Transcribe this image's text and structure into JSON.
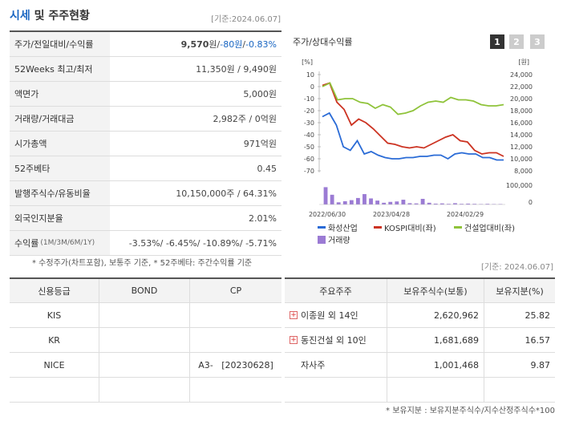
{
  "header": {
    "title_blue": "시세",
    "title_rest": " 및 주주현황",
    "date": "[기준:2024.06.07]"
  },
  "quote_rows": [
    {
      "label": "주가/전일대비/수익률",
      "price": "9,570",
      "unit": "원",
      "sep": " / ",
      "change": "-80원",
      "rate": "-0.83%"
    },
    {
      "label": "52Weeks 최고/최저",
      "value": "11,350원 / 9,490원"
    },
    {
      "label": "액면가",
      "value": "5,000원"
    },
    {
      "label": "거래량/거래대금",
      "value": "2,982주 / 0억원"
    },
    {
      "label": "시가총액",
      "value": "971억원"
    },
    {
      "label": "52주베타",
      "value": "0.45"
    },
    {
      "label": "발행주식수/유동비율",
      "value": "10,150,000주 / 64.31%"
    },
    {
      "label": "외국인지분율",
      "value": "2.01%"
    },
    {
      "label": "수익률",
      "label_small": "(1M/3M/6M/1Y)",
      "value": "-3.53%/ -6.45%/ -10.89%/ -5.71%"
    }
  ],
  "note_left": "* 수정주가(차트포함), 보통주 기준, * 52주베타: 주간수익률 기준",
  "chart_panel": {
    "title": "주가/상대수익률",
    "pages": [
      "1",
      "2",
      "3"
    ]
  },
  "chart_data": {
    "type": "line",
    "x_ticks": [
      "2022/06/30",
      "2023/04/28",
      "2024/02/29"
    ],
    "left_axis_unit": "[%]",
    "left_ticks": [
      "10",
      "0",
      "-10",
      "-20",
      "-30",
      "-40",
      "-50",
      "-60",
      "-70"
    ],
    "right_axis_unit": "[원]",
    "right_ticks": [
      "24,000",
      "22,000",
      "20,000",
      "18,000",
      "16,000",
      "14,000",
      "12,000",
      "10,000",
      "8,000"
    ],
    "volume_ticks": [
      "100,000",
      "0"
    ],
    "ylim_left": [
      -70,
      10
    ],
    "series": [
      {
        "name": "화성산업",
        "color": "#2a6bd6",
        "values": [
          -25,
          -22,
          -32,
          -50,
          -53,
          -45,
          -56,
          -54,
          -57,
          -59,
          -60,
          -60,
          -59,
          -59,
          -58,
          -58,
          -57,
          -57,
          -60,
          -56,
          -55,
          -56,
          -56,
          -59,
          -59,
          -61,
          -61
        ]
      },
      {
        "name": "KOSPI대비(좌)",
        "color": "#cc3322",
        "values": [
          1,
          3,
          -13,
          -19,
          -32,
          -27,
          -30,
          -35,
          -41,
          -47,
          -48,
          -50,
          -51,
          -50,
          -51,
          -48,
          -45,
          -42,
          -40,
          -45,
          -46,
          -53,
          -56,
          -55,
          -55,
          -58
        ]
      },
      {
        "name": "건설업대비(좌)",
        "color": "#8fc33a",
        "values": [
          0,
          3,
          -11,
          -10,
          -10,
          -13,
          -14,
          -18,
          -15,
          -17,
          -23,
          -22,
          -20,
          -16,
          -13,
          -12,
          -13,
          -9,
          -11,
          -11,
          -12,
          -15,
          -16,
          -16,
          -15
        ]
      }
    ],
    "volume_name": "거래량",
    "volume_color": "#9b7bd4",
    "volume": [
      80,
      45,
      10,
      15,
      20,
      30,
      48,
      28,
      18,
      8,
      12,
      14,
      22,
      6,
      5,
      26,
      8,
      4,
      5,
      3,
      6,
      3,
      4,
      3,
      2,
      3,
      2,
      2
    ]
  },
  "date_mid": "[기준: 2024.06.07]",
  "credit_table": {
    "headers": [
      "신용등급",
      "BOND",
      "CP"
    ],
    "rows": [
      [
        "KIS",
        "",
        ""
      ],
      [
        "KR",
        "",
        ""
      ],
      [
        "NICE",
        "",
        "A3-   [20230628]"
      ],
      [
        "",
        "",
        ""
      ]
    ]
  },
  "holder_table": {
    "headers": [
      "주요주주",
      "보유주식수(보통)",
      "보유지분(%)"
    ],
    "rows": [
      {
        "name": "이종원 외 14인",
        "plus": true,
        "shares": "2,620,962",
        "pct": "25.82"
      },
      {
        "name": "동진건설 외 10인",
        "plus": true,
        "shares": "1,681,689",
        "pct": "16.57"
      },
      {
        "name": "자사주",
        "plus": false,
        "shares": "1,001,468",
        "pct": "9.87"
      },
      {
        "name": "",
        "plus": false,
        "shares": "",
        "pct": ""
      }
    ]
  },
  "note_right": "* 보유지분 : 보유지분주식수/지수산정주식수*100"
}
